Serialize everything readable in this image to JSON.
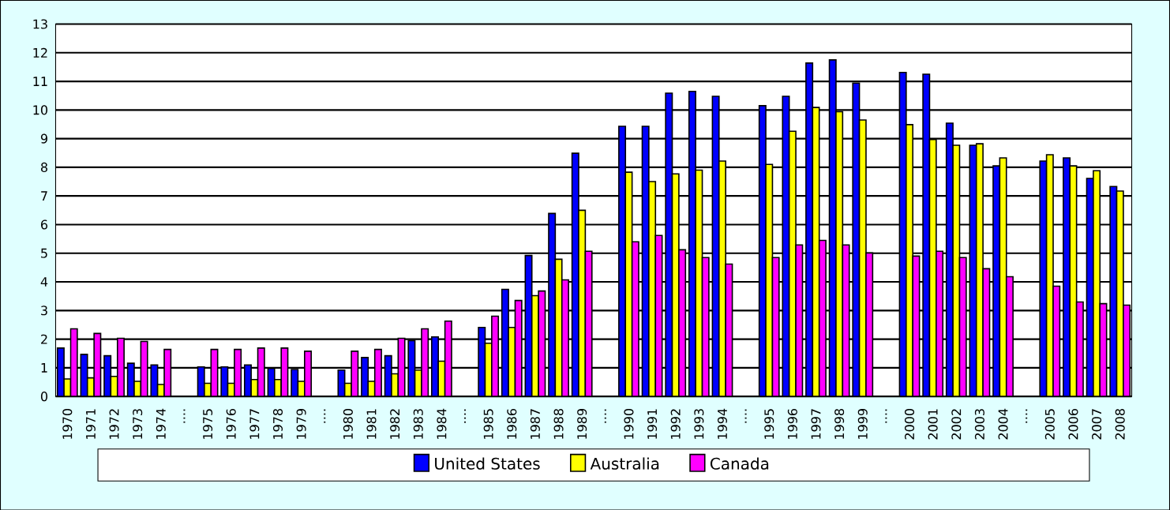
{
  "chart_data": {
    "type": "bar",
    "categories": [
      "1970",
      "1971",
      "1972",
      "1973",
      "1974",
      "....",
      "1975",
      "1976",
      "1977",
      "1978",
      "1979",
      "....",
      "1980",
      "1981",
      "1982",
      "1983",
      "1984",
      "....",
      "1985",
      "1986",
      "1987",
      "1988",
      "1989",
      "....",
      "1990",
      "1991",
      "1992",
      "1993",
      "1994",
      "....",
      "1995",
      "1996",
      "1997",
      "1998",
      "1999",
      "....",
      "2000",
      "2001",
      "2002",
      "2003",
      "2004",
      "....",
      "2005",
      "2006",
      "2007",
      "2008"
    ],
    "series": [
      {
        "name": "United States",
        "color": "#0000ff",
        "values": [
          1.69,
          1.47,
          1.42,
          1.16,
          1.1,
          null,
          1.03,
          1.03,
          1.1,
          0.98,
          0.94,
          null,
          0.92,
          1.36,
          1.42,
          1.95,
          2.08,
          null,
          2.41,
          3.74,
          4.92,
          6.39,
          8.49,
          null,
          9.43,
          9.43,
          10.59,
          10.65,
          10.48,
          null,
          10.15,
          10.48,
          11.64,
          11.75,
          10.94,
          null,
          11.31,
          11.25,
          9.54,
          8.77,
          8.05,
          null,
          8.22,
          8.33,
          7.61,
          7.33
        ]
      },
      {
        "name": "Australia",
        "color": "#ffff00",
        "values": [
          0.61,
          0.65,
          0.7,
          0.53,
          0.42,
          null,
          0.46,
          0.46,
          0.59,
          0.59,
          0.53,
          null,
          0.46,
          0.53,
          0.79,
          0.92,
          1.23,
          null,
          1.86,
          2.41,
          3.52,
          4.79,
          6.5,
          null,
          7.83,
          7.5,
          7.77,
          7.9,
          8.22,
          null,
          8.1,
          9.26,
          10.09,
          9.94,
          9.65,
          null,
          9.49,
          8.97,
          8.77,
          8.82,
          8.33,
          null,
          8.44,
          8.05,
          7.88,
          7.17
        ]
      },
      {
        "name": "Canada",
        "color": "#ff00ff",
        "values": [
          2.36,
          2.2,
          2.03,
          1.92,
          1.64,
          null,
          1.64,
          1.64,
          1.69,
          1.69,
          1.58,
          null,
          1.58,
          1.64,
          2.03,
          2.36,
          2.63,
          null,
          2.8,
          3.35,
          3.68,
          4.07,
          5.07,
          null,
          5.4,
          5.62,
          5.12,
          4.85,
          4.62,
          null,
          4.85,
          5.29,
          5.45,
          5.29,
          5.01,
          null,
          4.9,
          5.07,
          4.85,
          4.46,
          4.18,
          null,
          3.85,
          3.3,
          3.24,
          3.19
        ]
      }
    ],
    "ylim": [
      0,
      13
    ],
    "yticks": [
      0,
      1,
      2,
      3,
      4,
      5,
      6,
      7,
      8,
      9,
      10,
      11,
      12,
      13
    ],
    "grid": "y",
    "legend": "bottom"
  }
}
